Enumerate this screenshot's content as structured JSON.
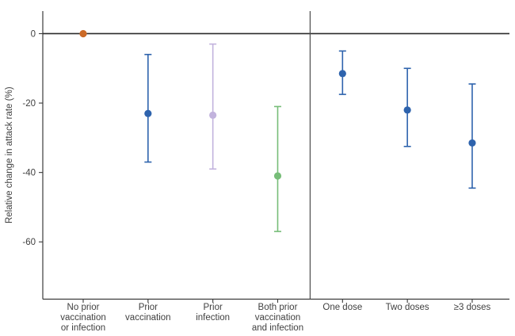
{
  "chart_data": {
    "type": "scatter",
    "subtype": "point-estimates-with-95ci-error-bars",
    "title": "",
    "xlabel": "",
    "ylabel": "Relative change in attack rate (%)",
    "ylim": [
      -76.5,
      6.5
    ],
    "y_ticks": [
      0,
      -20,
      -40,
      -60
    ],
    "grid": false,
    "zero_reference_line": 0,
    "legend_position": "none",
    "panel_divider_after_category_index": 3,
    "axis_color": "#3b3b3b",
    "zero_line_color": "#2a2a2a",
    "divider_color": "#4d4d4d",
    "text_color": "#404040",
    "categories": [
      "No prior vaccination or infection",
      "Prior vaccination",
      "Prior infection",
      "Both prior vaccination and infection",
      "One dose",
      "Two doses",
      "≥3 doses"
    ],
    "points": [
      {
        "slug": "no-prior-vaccination-or-infection",
        "label_lines": [
          "No prior",
          "vaccination",
          "or infection"
        ],
        "value": 0,
        "ci_high": null,
        "ci_low": null,
        "color": "#cc6a27"
      },
      {
        "slug": "prior-vaccination",
        "label_lines": [
          "Prior",
          "vaccination"
        ],
        "value": -23,
        "ci_high": -6,
        "ci_low": -37,
        "color": "#2e63ad"
      },
      {
        "slug": "prior-infection",
        "label_lines": [
          "Prior",
          "infection"
        ],
        "value": -23.5,
        "ci_high": -3,
        "ci_low": -39,
        "color": "#c2b3dd"
      },
      {
        "slug": "both-prior-vaccination-and-infection",
        "label_lines": [
          "Both prior",
          "vaccination",
          "and infection"
        ],
        "value": -41,
        "ci_high": -21,
        "ci_low": -57,
        "color": "#77bd78"
      },
      {
        "slug": "one-dose",
        "label_lines": [
          "One dose"
        ],
        "value": -11.5,
        "ci_high": -5,
        "ci_low": -17.5,
        "color": "#2e63ad"
      },
      {
        "slug": "two-doses",
        "label_lines": [
          "Two doses"
        ],
        "value": -22,
        "ci_high": -10,
        "ci_low": -32.5,
        "color": "#2e63ad"
      },
      {
        "slug": "three-plus-doses",
        "label_lines": [
          "≥3 doses"
        ],
        "value": -31.5,
        "ci_high": -14.5,
        "ci_low": -44.5,
        "color": "#2e63ad"
      }
    ]
  }
}
